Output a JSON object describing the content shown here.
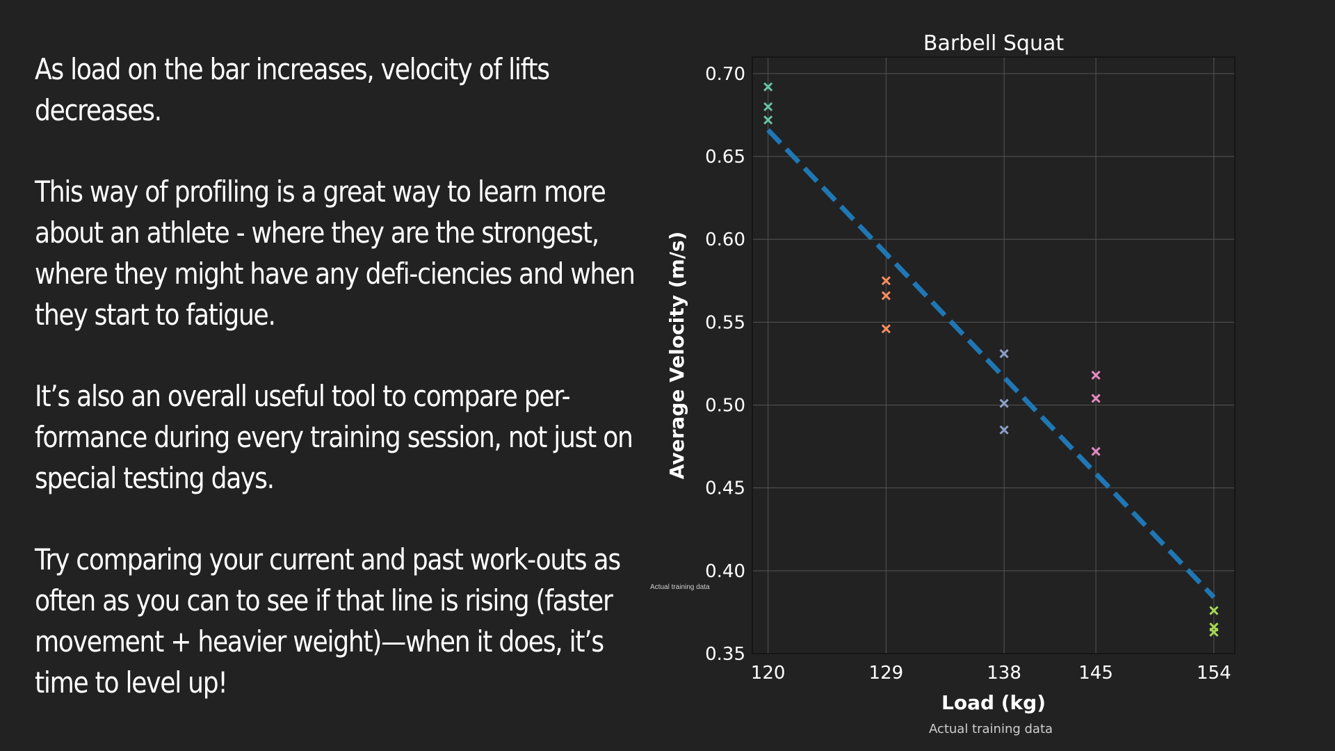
{
  "slide": {
    "paragraphs": [
      "As load on the bar increases, velocity of lifts decreases.",
      "This way of profiling is a great way to learn more about an athlete - where they are the strongest, where they might have any defi-ciencies and when they start to fatigue.",
      "It’s also an overall useful tool to compare per-formance during every training session, not just on special testing days.",
      "Try comparing your current and past work-outs as often as you can to see if that line is rising (faster movement + heavier weight)—when it does, it’s time to level up!"
    ],
    "small_caption": "Actual training data"
  },
  "chart_data": {
    "type": "scatter",
    "title": "Barbell Squat",
    "xlabel": "Load (kg)",
    "ylabel": "Average Velocity (m/s)",
    "caption": "Actual training data",
    "categories": [
      "120",
      "129",
      "138",
      "145",
      "154"
    ],
    "x_ticks": [
      120,
      129,
      138,
      145,
      154
    ],
    "xlim": [
      118.8,
      155.6
    ],
    "ylim": [
      0.35,
      0.71
    ],
    "y_ticks": [
      "0.70",
      "0.65",
      "0.60",
      "0.55",
      "0.50",
      "0.45",
      "0.40",
      "0.35"
    ],
    "grid": true,
    "series": [
      {
        "x": 120,
        "values": [
          0.692,
          0.68,
          0.672
        ],
        "color": "#66c2a5"
      },
      {
        "x": 129,
        "values": [
          0.575,
          0.566,
          0.546
        ],
        "color": "#fc8d62"
      },
      {
        "x": 138,
        "values": [
          0.531,
          0.501,
          0.485
        ],
        "color": "#8da0cb"
      },
      {
        "x": 145,
        "values": [
          0.518,
          0.504,
          0.472
        ],
        "color": "#e78ac3"
      },
      {
        "x": 154,
        "values": [
          0.376,
          0.366,
          0.363
        ],
        "color": "#a6d854"
      }
    ],
    "trend_line": {
      "x": [
        120,
        154
      ],
      "y": [
        0.666,
        0.384
      ],
      "style": "dashed",
      "color": "#1f77b4"
    },
    "colors": {
      "background": "#222222",
      "grid": "#555555",
      "text": "#ffffff"
    }
  }
}
